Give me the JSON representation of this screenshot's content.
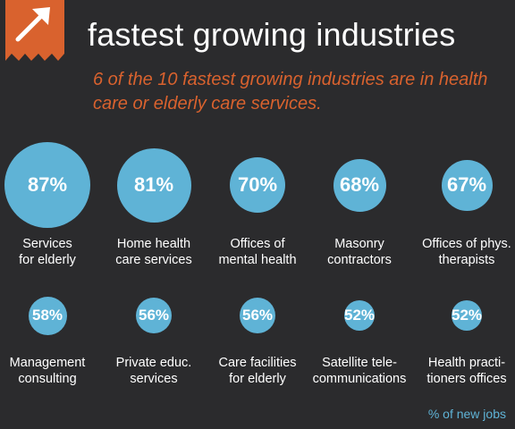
{
  "header": {
    "title": "fastest growing industries",
    "subtitle": "6 of the 10 fastest growing industries are in health care or elderly care services.",
    "icon": "arrow-up-right-icon",
    "accent_color": "#d9622e"
  },
  "chart_data": {
    "type": "bubble",
    "unit_note": "% of new jobs",
    "bubble_color": "#5fb3d6",
    "items": [
      {
        "label": "Services\nfor elderly",
        "value": 87,
        "value_label": "87%"
      },
      {
        "label": "Home health\ncare services",
        "value": 81,
        "value_label": "81%"
      },
      {
        "label": "Offices of\nmental health",
        "value": 70,
        "value_label": "70%"
      },
      {
        "label": "Masonry\ncontractors",
        "value": 68,
        "value_label": "68%"
      },
      {
        "label": "Offices of phys.\ntherapists",
        "value": 67,
        "value_label": "67%"
      },
      {
        "label": "Management\nconsulting",
        "value": 58,
        "value_label": "58%"
      },
      {
        "label": "Private educ.\nservices",
        "value": 56,
        "value_label": "56%"
      },
      {
        "label": "Care facilities\nfor elderly",
        "value": 56,
        "value_label": "56%"
      },
      {
        "label": "Satellite tele-\ncommunications",
        "value": 52,
        "value_label": "52%"
      },
      {
        "label": "Health practi-\ntioners offices",
        "value": 52,
        "value_label": "52%"
      }
    ]
  }
}
